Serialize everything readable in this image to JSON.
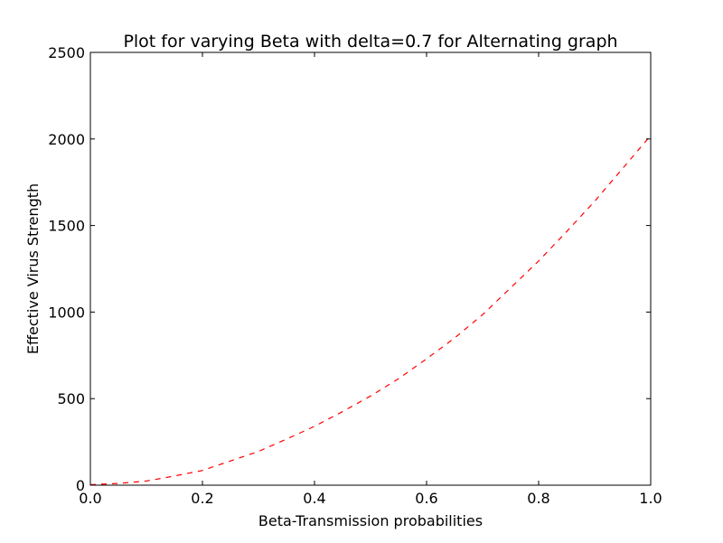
{
  "chart_data": {
    "type": "line",
    "title": "Plot for varying Beta with delta=0.7 for Alternating graph",
    "xlabel": "Beta-Transmission probabilities",
    "ylabel": "Effective Virus Strength",
    "xlim": [
      0.0,
      1.0
    ],
    "ylim": [
      0,
      2500
    ],
    "xticks": [
      0.0,
      0.2,
      0.4,
      0.6,
      0.8,
      1.0
    ],
    "xtick_labels": [
      "0.0",
      "0.2",
      "0.4",
      "0.6",
      "0.8",
      "1.0"
    ],
    "yticks": [
      0,
      500,
      1000,
      1500,
      2000,
      2500
    ],
    "ytick_labels": [
      "0",
      "500",
      "1000",
      "1500",
      "2000",
      "2500"
    ],
    "grid": false,
    "series": [
      {
        "color": "#ff0000",
        "linestyle": "dashed",
        "x": [
          0.0,
          0.05,
          0.1,
          0.15,
          0.2,
          0.25,
          0.3,
          0.35,
          0.4,
          0.45,
          0.5,
          0.55,
          0.6,
          0.65,
          0.7,
          0.75,
          0.8,
          0.85,
          0.9,
          0.95,
          1.0
        ],
        "y": [
          3,
          10,
          24,
          53,
          85,
          140,
          195,
          266,
          340,
          425,
          515,
          615,
          730,
          850,
          985,
          1140,
          1295,
          1465,
          1640,
          1830,
          2020
        ]
      }
    ]
  }
}
